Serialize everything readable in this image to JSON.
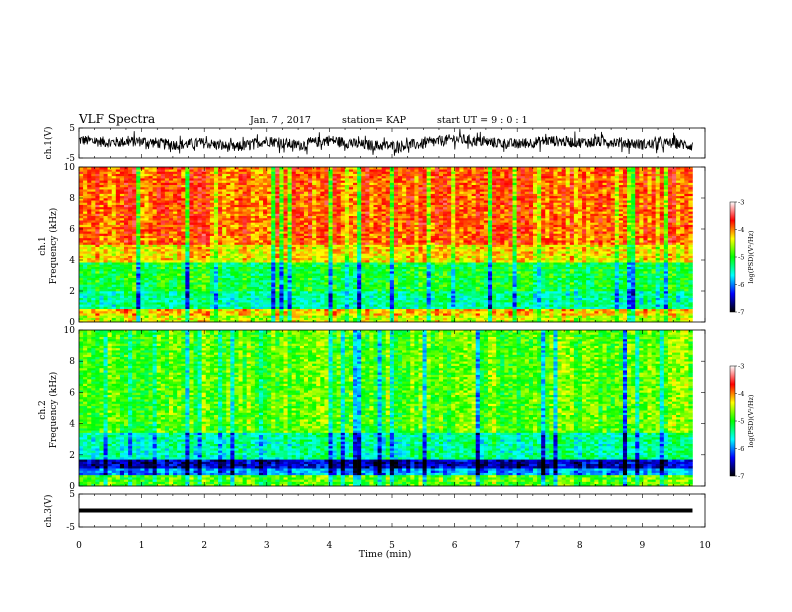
{
  "header": {
    "title": "VLF Spectra",
    "date": "Jan. 7 , 2017",
    "station": "station= KAP",
    "start_ut": "start UT =  9 : 0  : 1"
  },
  "colorbar": {
    "label": "log(PSD)(V²/Hz)",
    "ticks": [
      "-3",
      "-4",
      "-5",
      "-6",
      "-7"
    ],
    "colors": [
      "#ffffff",
      "#ff0000",
      "#ffff00",
      "#00ff00",
      "#00ffff",
      "#0000ff",
      "#000000"
    ]
  },
  "chart_data": [
    {
      "type": "line",
      "panel": "ch1-voltage",
      "ylabel": "ch.1(V)",
      "ylim": [
        -5,
        5
      ],
      "yticks": [
        "5",
        "-5"
      ],
      "x": [
        0,
        0.5,
        1,
        1.5,
        2,
        2.5,
        3,
        3.5,
        4,
        4.5,
        5,
        5.5,
        6,
        6.5,
        7,
        7.5,
        8,
        8.5,
        9,
        9.5,
        9.8
      ],
      "y": [
        1.0,
        0.2,
        0.6,
        -0.6,
        0.0,
        -1.6,
        0.8,
        -0.8,
        1.0,
        -0.6,
        -1.0,
        -0.3,
        1.4,
        0.3,
        -0.4,
        0.8,
        0.2,
        0.5,
        -0.5,
        0.0,
        -1.0
      ],
      "noise_amplitude": 1.8
    },
    {
      "type": "heatmap",
      "panel": "ch1-spectrogram",
      "ylabel": "Frequency (kHz)",
      "channel_label": "ch.1",
      "ylim": [
        0,
        10
      ],
      "yticks": [
        "0",
        "2",
        "4",
        "6",
        "8",
        "10"
      ],
      "xlim": [
        0,
        10
      ],
      "data_end_min": 9.8,
      "log_psd_bands": [
        {
          "f_from": 0.0,
          "f_to": 0.4,
          "log_psd": -4.5
        },
        {
          "f_from": 0.4,
          "f_to": 0.9,
          "log_psd": -4.2
        },
        {
          "f_from": 0.9,
          "f_to": 2.0,
          "log_psd": -5.4
        },
        {
          "f_from": 2.0,
          "f_to": 3.8,
          "log_psd": -5.1
        },
        {
          "f_from": 3.8,
          "f_to": 5.0,
          "log_psd": -4.3
        },
        {
          "f_from": 5.0,
          "f_to": 10.0,
          "log_psd": -3.9
        }
      ]
    },
    {
      "type": "heatmap",
      "panel": "ch2-spectrogram",
      "ylabel": "Frequency (kHz)",
      "channel_label": "ch.2",
      "ylim": [
        0,
        10
      ],
      "yticks": [
        "0",
        "2",
        "4",
        "6",
        "8",
        "10"
      ],
      "xlim": [
        0,
        10
      ],
      "data_end_min": 9.8,
      "log_psd_bands": [
        {
          "f_from": 0.0,
          "f_to": 0.7,
          "log_psd": -4.8
        },
        {
          "f_from": 0.7,
          "f_to": 1.2,
          "log_psd": -5.9
        },
        {
          "f_from": 1.2,
          "f_to": 1.7,
          "log_psd": -6.5
        },
        {
          "f_from": 1.7,
          "f_to": 3.5,
          "log_psd": -5.4
        },
        {
          "f_from": 3.5,
          "f_to": 10.0,
          "log_psd": -4.8
        }
      ]
    },
    {
      "type": "line",
      "panel": "ch3-voltage",
      "ylabel": "ch.3(V)",
      "ylim": [
        -5,
        5
      ],
      "yticks": [
        "5",
        "-5"
      ],
      "x": [
        0,
        9.8
      ],
      "y": [
        0.0,
        0.0
      ]
    }
  ],
  "xaxis": {
    "label": "Time (min)",
    "ticks": [
      "0",
      "1",
      "2",
      "3",
      "4",
      "5",
      "6",
      "7",
      "8",
      "9",
      "10"
    ],
    "xlim": [
      0,
      10
    ]
  }
}
